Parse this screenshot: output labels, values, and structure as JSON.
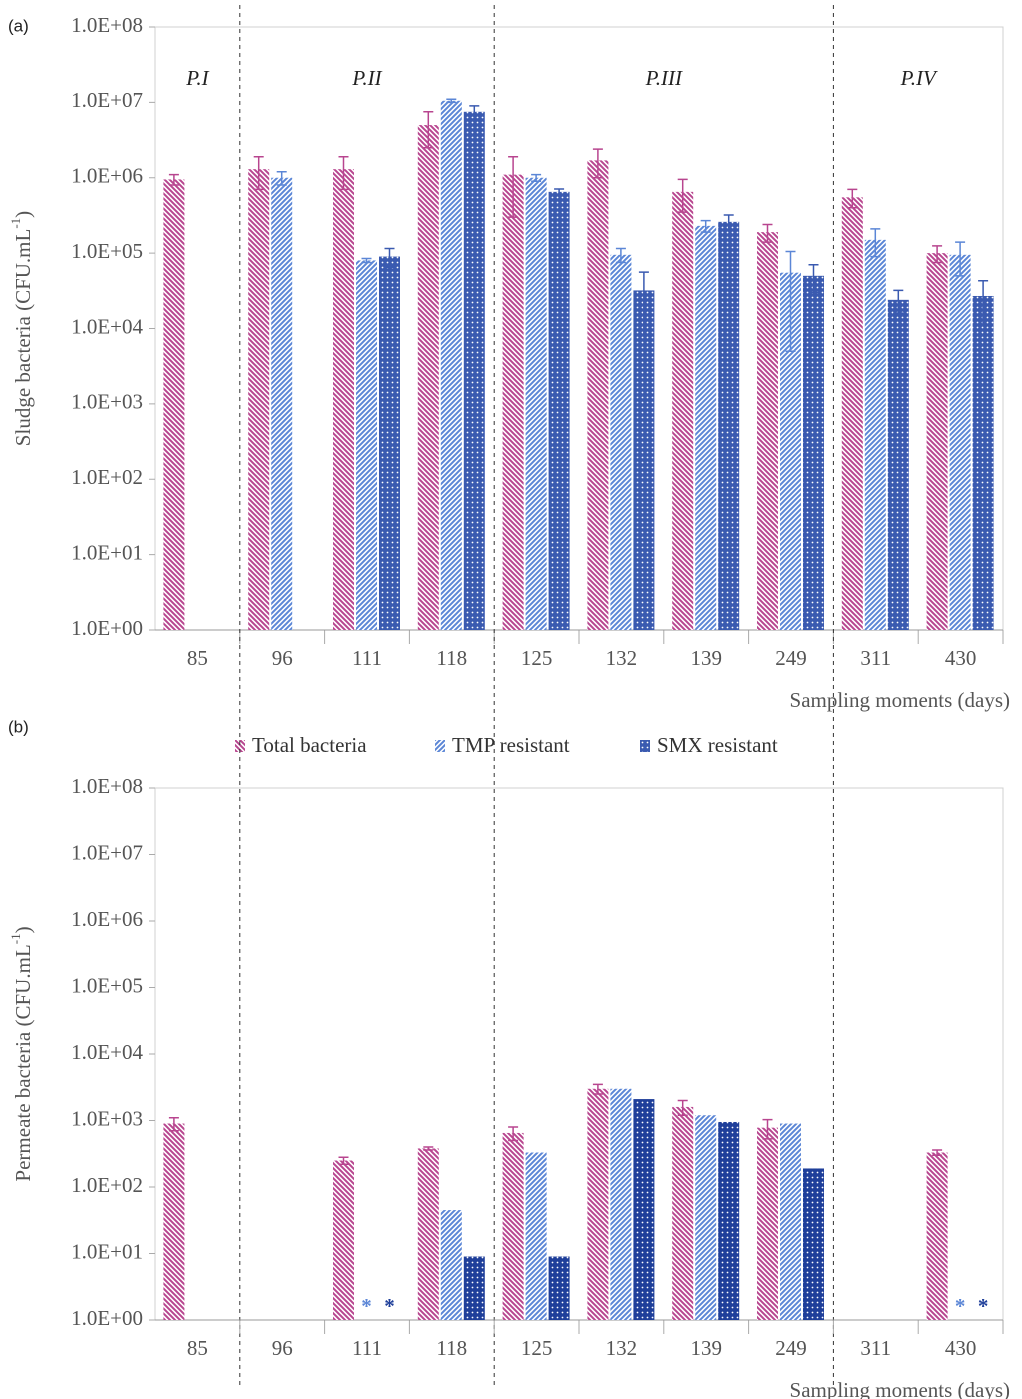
{
  "chart_data": [
    {
      "type": "bar",
      "panel_label": "(a)",
      "log_scale": true,
      "ylabel": {
        "text": "Sludge bacteria (CFU.mL",
        "superscript": "-1",
        "close": ")"
      },
      "xlabel": "Sampling moments (days)",
      "categories": [
        "85",
        "96",
        "111",
        "118",
        "125",
        "132",
        "139",
        "249",
        "311",
        "430"
      ],
      "ylim": [
        1,
        100000000
      ],
      "yticks": [
        {
          "value": 1,
          "label": "1.0E+00"
        },
        {
          "value": 10,
          "label": "1.0E+01"
        },
        {
          "value": 100,
          "label": "1.0E+02"
        },
        {
          "value": 1000,
          "label": "1.0E+03"
        },
        {
          "value": 10000,
          "label": "1.0E+04"
        },
        {
          "value": 100000,
          "label": "1.0E+05"
        },
        {
          "value": 1000000,
          "label": "1.0E+06"
        },
        {
          "value": 10000000,
          "label": "1.0E+07"
        },
        {
          "value": 100000000,
          "label": "1.0E+08"
        }
      ],
      "legend": "bottom",
      "periods": [
        {
          "label": "P.I",
          "first_category": "85"
        },
        {
          "label": "P.II",
          "first_category": "96"
        },
        {
          "label": "P.III",
          "first_category": "125"
        },
        {
          "label": "P.IV",
          "first_category": "311"
        }
      ],
      "series": [
        {
          "name": "Total bacteria",
          "color": "#b8458f",
          "pattern": "back-diagonal",
          "values": [
            950000,
            1300000,
            1300000,
            5000000,
            1100000,
            1700000,
            650000,
            190000,
            550000,
            100000
          ],
          "errors": [
            150000,
            600000,
            600000,
            2500000,
            800000,
            700000,
            300000,
            50000,
            150000,
            25000
          ]
        },
        {
          "name": "TMP resistant",
          "color": "#5b86d6",
          "pattern": "diagonal",
          "values": [
            null,
            1000000,
            80000,
            10500000,
            1000000,
            95000,
            230000,
            55000,
            150000,
            95000
          ],
          "errors": [
            null,
            200000,
            5000,
            500000,
            100000,
            20000,
            40000,
            50000,
            60000,
            45000
          ]
        },
        {
          "name": "SMX resistant",
          "color": "#3a5ab0",
          "pattern": "crosshatch",
          "values": [
            null,
            null,
            90000,
            7500000,
            650000,
            32000,
            260000,
            50000,
            24000,
            27000
          ],
          "errors": [
            null,
            null,
            25000,
            1500000,
            60000,
            24000,
            60000,
            20000,
            8000,
            16000
          ]
        }
      ]
    },
    {
      "type": "bar",
      "panel_label": "(b)",
      "log_scale": true,
      "ylabel": {
        "text": "Permeate bacteria (CFU.mL",
        "superscript": "-1",
        "close": ")"
      },
      "xlabel": "Sampling moments (days)",
      "categories": [
        "85",
        "96",
        "111",
        "118",
        "125",
        "132",
        "139",
        "249",
        "311",
        "430"
      ],
      "ylim": [
        1,
        100000000
      ],
      "yticks": [
        {
          "value": 1,
          "label": "1.0E+00"
        },
        {
          "value": 10,
          "label": "1.0E+01"
        },
        {
          "value": 100,
          "label": "1.0E+02"
        },
        {
          "value": 1000,
          "label": "1.0E+03"
        },
        {
          "value": 10000,
          "label": "1.0E+04"
        },
        {
          "value": 100000,
          "label": "1.0E+05"
        },
        {
          "value": 1000000,
          "label": "1.0E+06"
        },
        {
          "value": 10000000,
          "label": "1.0E+07"
        },
        {
          "value": 100000000,
          "label": "1.0E+08"
        }
      ],
      "series": [
        {
          "name": "Total bacteria",
          "color": "#b8458f",
          "pattern": "back-diagonal",
          "values": [
            900,
            null,
            250,
            380,
            650,
            3000,
            1600,
            780,
            null,
            330
          ],
          "errors": [
            200,
            null,
            30,
            20,
            150,
            500,
            400,
            250,
            null,
            30
          ]
        },
        {
          "name": "TMP resistant",
          "color": "#5b86d6",
          "pattern": "diagonal",
          "values": [
            null,
            null,
            null,
            45,
            330,
            3000,
            1200,
            900,
            null,
            null
          ],
          "value_labels": [
            null,
            null,
            "*",
            null,
            null,
            null,
            null,
            null,
            null,
            "*"
          ]
        },
        {
          "name": "SMX resistant",
          "color": "#1f3f9a",
          "pattern": "crosshatch",
          "values": [
            null,
            null,
            null,
            9,
            9,
            2100,
            950,
            190,
            null,
            null
          ],
          "value_labels": [
            null,
            null,
            "*",
            null,
            null,
            null,
            null,
            null,
            null,
            "*"
          ]
        }
      ]
    }
  ]
}
